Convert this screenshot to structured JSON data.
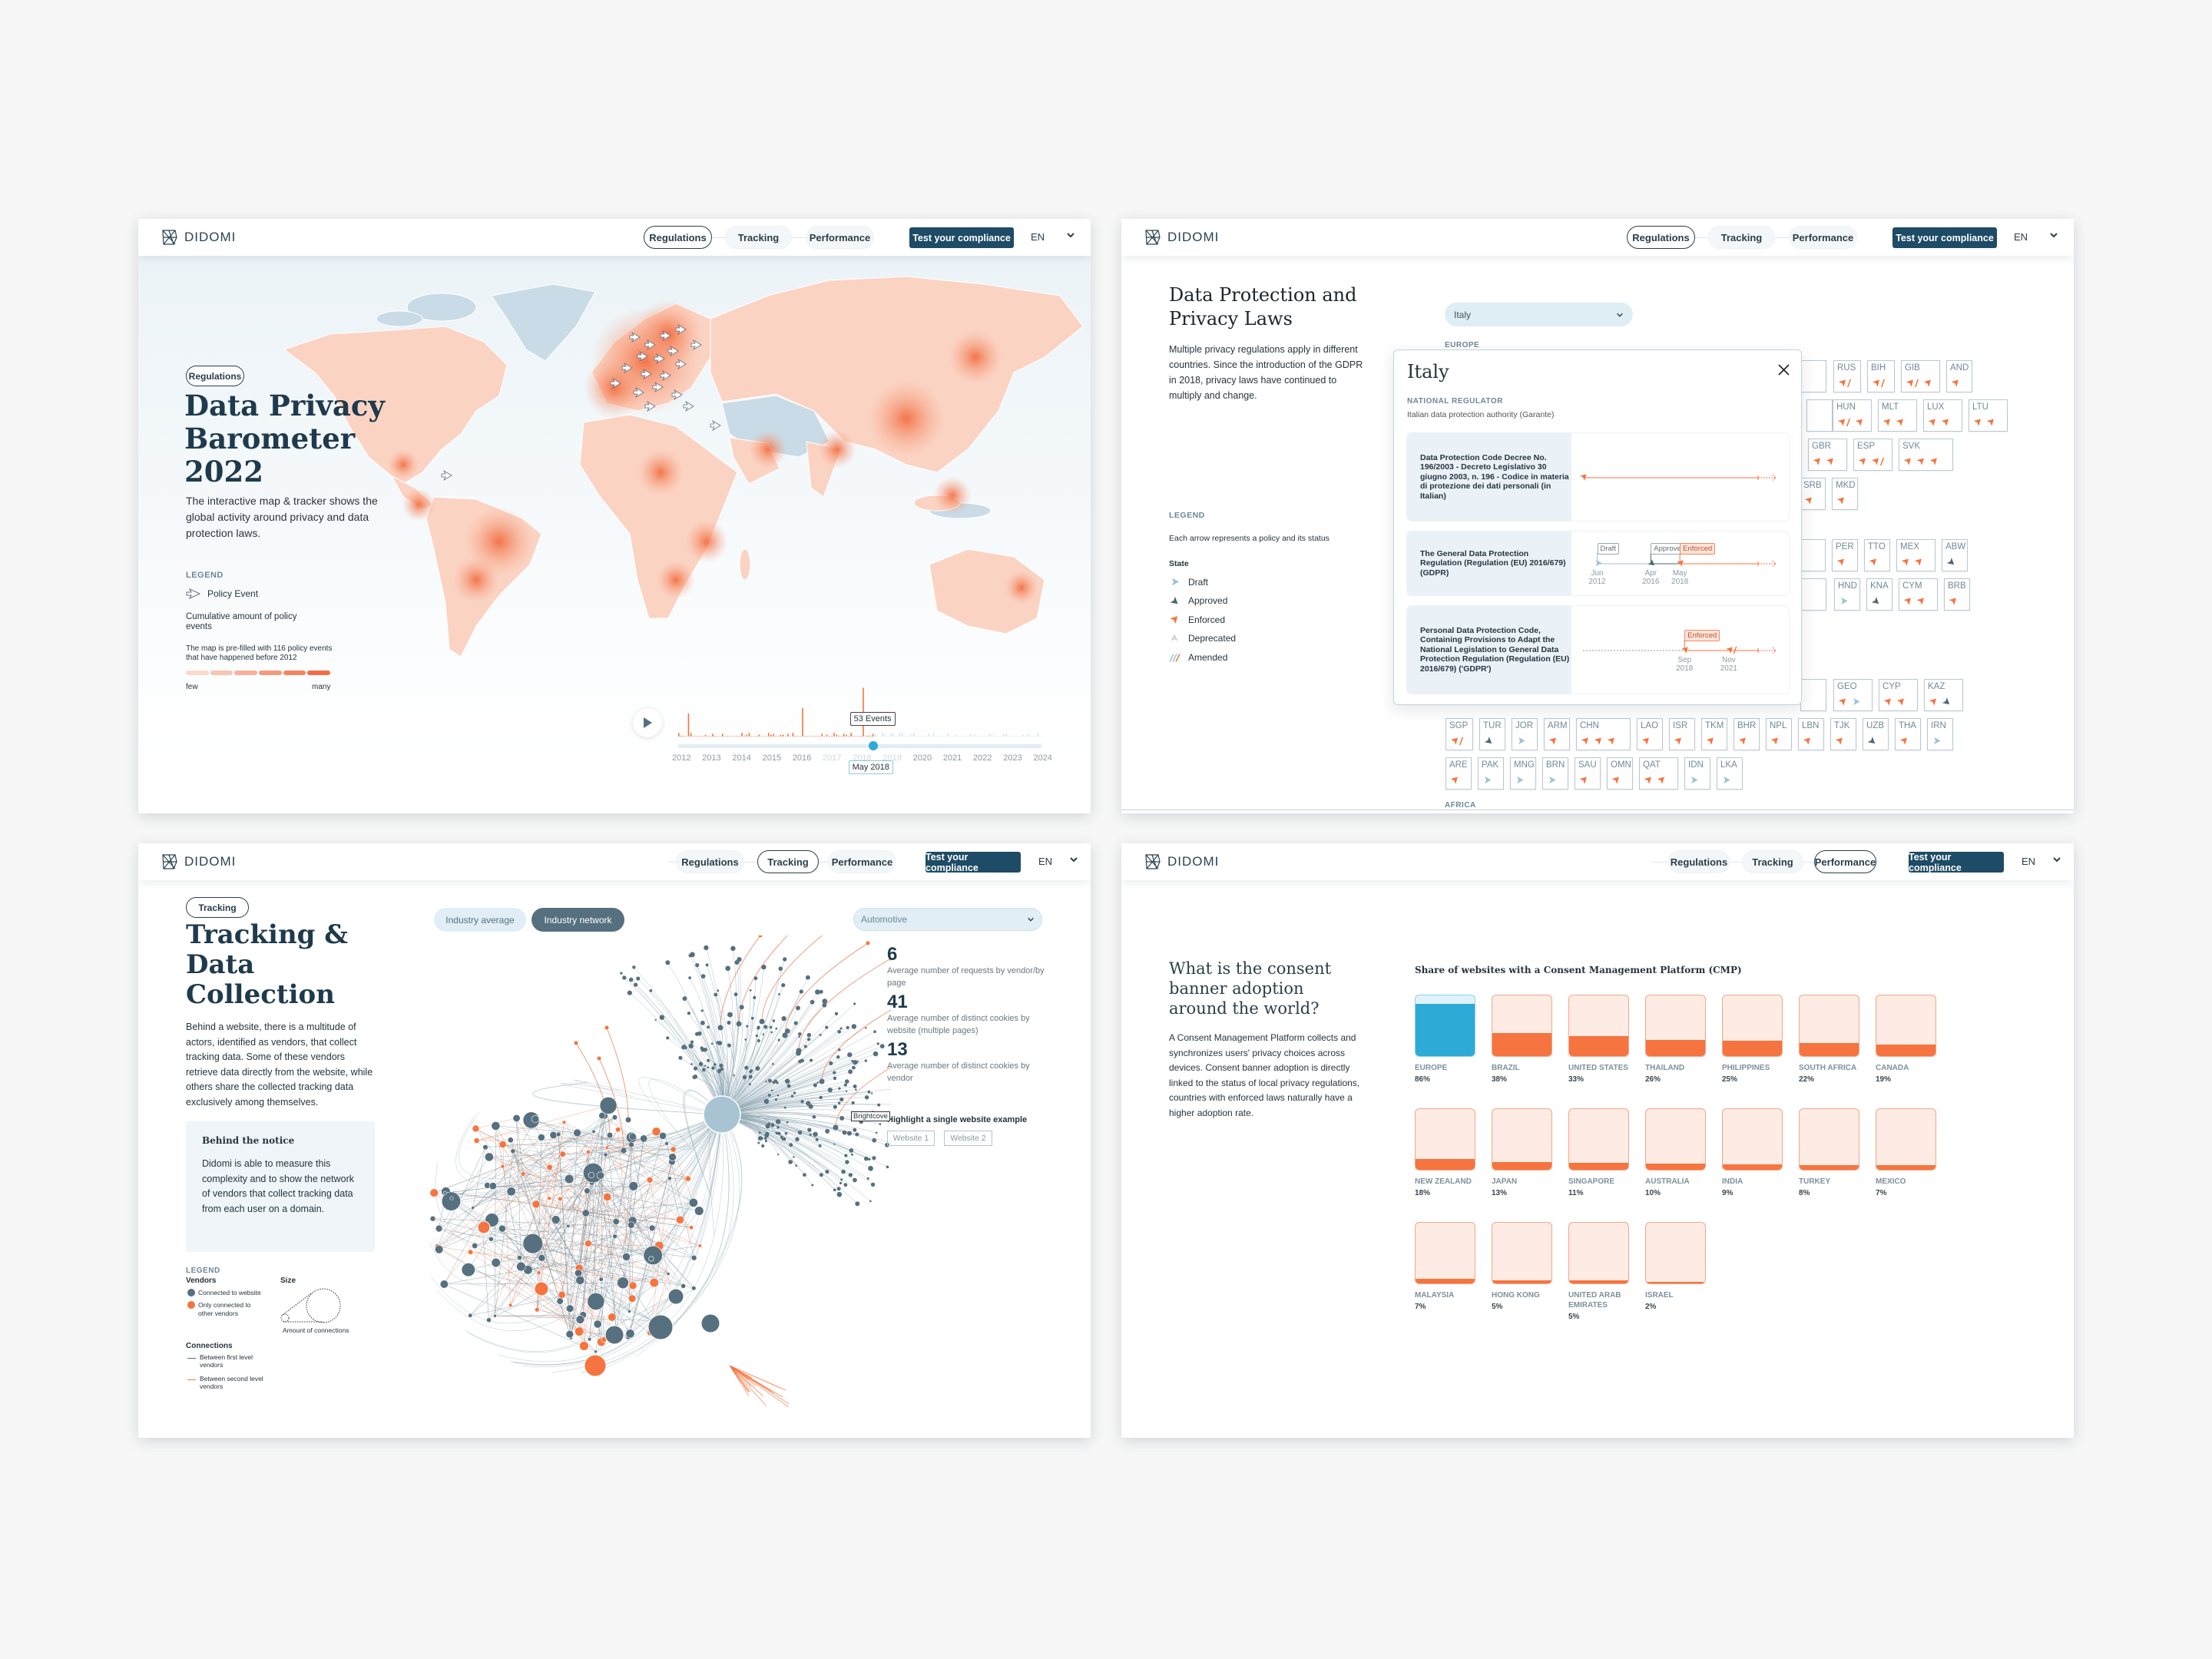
{
  "brand": "DIDOMI",
  "nav": {
    "items": [
      "Regulations",
      "Tracking",
      "Performance"
    ],
    "cta": "Test your compliance",
    "lang": "EN"
  },
  "colors": {
    "navy": "#1f3a4d",
    "accent_orange": "#f5743f",
    "accent_blue": "#2eaad6",
    "cta": "#1e4b66",
    "slate": "#56707f"
  },
  "barometer": {
    "tag": "Regulations",
    "title": [
      "Data Privacy",
      "Barometer",
      "2022"
    ],
    "description": "The interactive map & tracker shows the global activity around privacy and data protection laws.",
    "legend_title": "LEGEND",
    "legend_policy_event": "Policy Event",
    "cumulative_label": "Cumulative amount of policy events",
    "prefill_note": "The map is pre-filled with 116 policy events that have happened before 2012",
    "scale_low": "few",
    "scale_high": "many",
    "timeline": {
      "years": [
        "2012",
        "2013",
        "2014",
        "2015",
        "2016",
        "2017",
        "2018",
        "2019",
        "2020",
        "2021",
        "2022",
        "2023",
        "2024"
      ],
      "tooltip": "53 Events",
      "current": "May 2018",
      "current_position": 0.535,
      "spikes": [
        {
          "date": "2012-05",
          "events": 25
        },
        {
          "date": "2016-04",
          "events": 31
        },
        {
          "date": "2018-05",
          "events": 53
        }
      ]
    }
  },
  "laws": {
    "title": [
      "Data Protection and",
      "Privacy Laws"
    ],
    "description": "Multiple privacy regulations apply in different countries. Since the introduction of the GDPR in 2018, privacy laws have continued to multiply and change.",
    "country_select": "Italy",
    "legend_title": "LEGEND",
    "legend_note": "Each arrow represents a policy and its status",
    "state_title": "State",
    "states": [
      {
        "key": "draft",
        "label": "Draft"
      },
      {
        "key": "approved",
        "label": "Approved"
      },
      {
        "key": "enforced",
        "label": "Enforced"
      },
      {
        "key": "deprecated",
        "label": "Deprecated"
      },
      {
        "key": "amended",
        "label": "Amended"
      }
    ],
    "regions": {
      "europe": "EUROPE",
      "africa": "AFRICA"
    },
    "modal": {
      "country": "Italy",
      "regulator_label": "NATIONAL REGULATOR",
      "regulator": "Italian data protection authority (Garante)",
      "policies": [
        {
          "name": "Data Protection Code Decree No. 196/2003 - Decreto Legislativo 30 giugno 2003, n. 196 - Codice in materia di protezione dei dati personali (in Italian)",
          "events": [
            {
              "state": "enforced",
              "month": "",
              "year": 2011.4,
              "label": ""
            }
          ],
          "lead_dashed": false
        },
        {
          "name": "The General Data Protection Regulation (Regulation (EU) 2016/679) (GDPR)",
          "events": [
            {
              "state": "draft",
              "month": "Jun",
              "year": 2012,
              "label": "Draft"
            },
            {
              "state": "approved",
              "month": "Apr",
              "year": 2016,
              "label": "Approved"
            },
            {
              "state": "enforced",
              "month": "May",
              "year": 2018,
              "label": "Enforced"
            }
          ],
          "lead_dashed": false
        },
        {
          "name": "Personal Data Protection Code, Containing Provisions to Adapt the National Legislation to General Data Protection Regulation (Regulation (EU) 2016/679) ('GDPR')",
          "events": [
            {
              "state": "enforced",
              "month": "Sep",
              "year": 2018,
              "label": "Enforced"
            },
            {
              "state": "amended",
              "month": "Nov",
              "year": 2021,
              "label": ""
            }
          ],
          "lead_dashed": true
        }
      ]
    },
    "tiles": {
      "europe_rows": [
        [
          {
            "code": "RUS",
            "s": [
              "enforced-amended"
            ]
          },
          {
            "code": "BIH",
            "s": [
              "enforced-amended"
            ]
          },
          {
            "code": "GIB",
            "s": [
              "enforced-amended",
              "enforced"
            ]
          },
          {
            "code": "AND",
            "s": [
              "enforced"
            ]
          }
        ],
        [
          {
            "code": "HUN",
            "s": [
              "enforced-amended",
              "enforced"
            ]
          },
          {
            "code": "MLT",
            "s": [
              "enforced",
              "enforced"
            ]
          },
          {
            "code": "LUX",
            "s": [
              "enforced",
              "enforced"
            ]
          },
          {
            "code": "LTU",
            "s": [
              "enforced",
              "enforced"
            ]
          }
        ],
        [
          {
            "code": "GBR",
            "s": [
              "enforced",
              "enforced"
            ]
          },
          {
            "code": "ESP",
            "s": [
              "enforced",
              "enforced-amended"
            ]
          },
          {
            "code": "SVK",
            "s": [
              "enforced",
              "enforced",
              "enforced"
            ]
          }
        ],
        [
          {
            "code": "SRB",
            "s": [
              "enforced"
            ]
          },
          {
            "code": "MKD",
            "s": [
              "enforced"
            ]
          }
        ]
      ],
      "americas_rows": [
        [
          {
            "code": "PER",
            "s": [
              "enforced"
            ]
          },
          {
            "code": "TTO",
            "s": [
              "enforced"
            ]
          },
          {
            "code": "MEX",
            "s": [
              "enforced",
              "enforced"
            ]
          },
          {
            "code": "ABW",
            "s": [
              "approved"
            ]
          }
        ],
        [
          {
            "code": "HND",
            "s": [
              "draft"
            ]
          },
          {
            "code": "KNA",
            "s": [
              "approved"
            ]
          },
          {
            "code": "CYM",
            "s": [
              "enforced",
              "enforced"
            ]
          },
          {
            "code": "BRB",
            "s": [
              "enforced"
            ]
          }
        ]
      ],
      "asia_rows": [
        [
          {
            "code": "GEO",
            "s": [
              "enforced",
              "draft"
            ]
          },
          {
            "code": "CYP",
            "s": [
              "enforced",
              "enforced"
            ]
          },
          {
            "code": "KAZ",
            "s": [
              "enforced",
              "approved"
            ]
          }
        ],
        [
          {
            "code": "SGP",
            "s": [
              "enforced-amended"
            ]
          },
          {
            "code": "TUR",
            "s": [
              "approved"
            ]
          },
          {
            "code": "JOR",
            "s": [
              "draft"
            ]
          },
          {
            "code": "ARM",
            "s": [
              "enforced"
            ]
          },
          {
            "code": "CHN",
            "s": [
              "enforced",
              "enforced",
              "enforced"
            ]
          },
          {
            "code": "LAO",
            "s": [
              "enforced"
            ]
          },
          {
            "code": "ISR",
            "s": [
              "enforced"
            ]
          },
          {
            "code": "TKM",
            "s": [
              "enforced"
            ]
          },
          {
            "code": "BHR",
            "s": [
              "enforced"
            ]
          },
          {
            "code": "NPL",
            "s": [
              "enforced"
            ]
          },
          {
            "code": "LBN",
            "s": [
              "enforced"
            ]
          },
          {
            "code": "TJK",
            "s": [
              "enforced"
            ]
          },
          {
            "code": "UZB",
            "s": [
              "approved"
            ]
          },
          {
            "code": "THA",
            "s": [
              "enforced"
            ]
          },
          {
            "code": "IRN",
            "s": [
              "draft"
            ]
          }
        ],
        [
          {
            "code": "ARE",
            "s": [
              "enforced"
            ]
          },
          {
            "code": "PAK",
            "s": [
              "draft"
            ]
          },
          {
            "code": "MNG",
            "s": [
              "draft"
            ]
          },
          {
            "code": "BRN",
            "s": [
              "draft"
            ]
          },
          {
            "code": "SAU",
            "s": [
              "enforced"
            ]
          },
          {
            "code": "OMN",
            "s": [
              "enforced"
            ]
          },
          {
            "code": "QAT",
            "s": [
              "enforced",
              "enforced"
            ]
          },
          {
            "code": "IDN",
            "s": [
              "draft"
            ]
          },
          {
            "code": "LKA",
            "s": [
              "draft"
            ]
          }
        ]
      ]
    }
  },
  "tracking": {
    "tag": "Tracking",
    "title": [
      "Tracking &",
      "Data",
      "Collection"
    ],
    "description": "Behind a website, there is a multitude of actors, identified as vendors, that collect tracking data. Some of these vendors retrieve data directly from the website, while others share the collected tracking data exclusively among themselves.",
    "notice_title": "Behind the notice",
    "notice_text": "Didomi is able to measure this complexity and to show the network of vendors that collect tracking data from each user on a domain.",
    "toggle": [
      "Industry average",
      "Industry network"
    ],
    "toggle_active": 1,
    "industry_select": "Automotive",
    "stats": [
      {
        "value": "6",
        "label": "Average number of requests by vendor/by page"
      },
      {
        "value": "41",
        "label": "Average number of distinct cookies by website (multiple pages)"
      },
      {
        "value": "13",
        "label": "Average number of distinct cookies by vendor"
      }
    ],
    "node_tooltip": "Brightcove",
    "highlight_title": "Highlight a single website example",
    "website_buttons": [
      "Website 1",
      "Website 2"
    ],
    "legend": {
      "title": "LEGEND",
      "vendors_title": "Vendors",
      "vendor_connected": "Connected to website",
      "vendor_other": "Only connected to other vendors",
      "size_title": "Size",
      "size_note": "Amount of connections",
      "connections_title": "Connections",
      "conn_first": "Between first level vendors",
      "conn_second": "Between second level vendors"
    }
  },
  "consent": {
    "title": [
      "What is the consent",
      "banner adoption",
      "around the world?"
    ],
    "description": "A Consent Management Platform collects and synchronizes users' privacy choices across devices. Consent banner adoption is directly linked to the status of local privacy regulations, countries with enforced laws naturally have a higher adoption rate.",
    "chart_data": {
      "type": "bar",
      "title": "Share of websites with a Consent Management Platform (CMP)",
      "categories": [
        "EUROPE",
        "BRAZIL",
        "UNITED STATES",
        "THAILAND",
        "PHILIPPINES",
        "SOUTH AFRICA",
        "CANADA",
        "NEW ZEALAND",
        "JAPAN",
        "SINGAPORE",
        "AUSTRALIA",
        "INDIA",
        "TURKEY",
        "MEXICO",
        "MALAYSIA",
        "HONG KONG",
        "UNITED ARAB EMIRATES",
        "ISRAEL"
      ],
      "values": [
        86,
        38,
        33,
        26,
        25,
        22,
        19,
        18,
        13,
        11,
        10,
        9,
        8,
        7,
        7,
        5,
        5,
        2
      ],
      "value_labels": [
        "86%",
        "38%",
        "33%",
        "26%",
        "25%",
        "22%",
        "19%",
        "18%",
        "13%",
        "11%",
        "10%",
        "9%",
        "8%",
        "7%",
        "7%",
        "5%",
        "5%",
        "2%"
      ],
      "highlight": "EUROPE",
      "ylim": [
        0,
        100
      ]
    }
  }
}
